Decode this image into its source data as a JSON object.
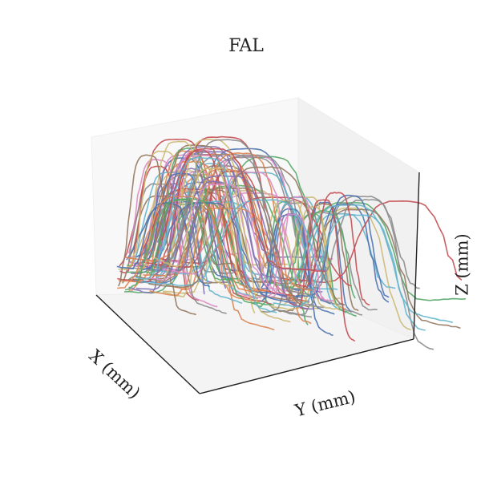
{
  "chart_data": {
    "type": "line3d",
    "title": "FAL",
    "xlabel": "X (mm)",
    "ylabel": "Y (mm)",
    "zlabel": "Z (mm)",
    "grid": false,
    "legend": "none",
    "trajectory_count": 110,
    "description_of_series": "many overlapping colored lift-and-place trajectories rising from the base plane to a peak height and descending",
    "palette": [
      "#4c72b0",
      "#dd8452",
      "#55a868",
      "#c44e52",
      "#8172b3",
      "#937860",
      "#da8bc3",
      "#8c8c8c",
      "#ccb974",
      "#64b5cd"
    ]
  }
}
